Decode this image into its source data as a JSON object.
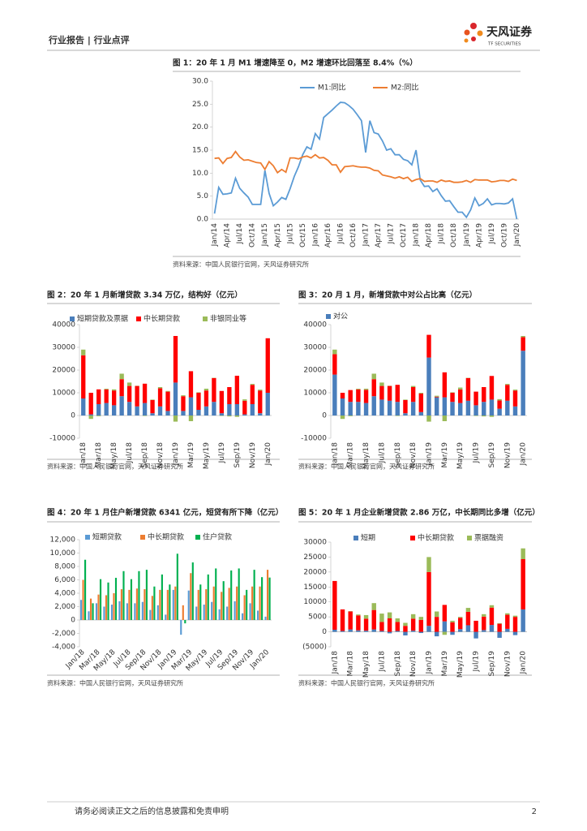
{
  "header": {
    "section": "行业报告 | 行业点评",
    "brand": "天风证券",
    "brand_en": "TF SECURITIES"
  },
  "chart_data": [
    {
      "type": "line",
      "title": "图 1：20 年 1 月 M1 增速降至 0，M2 增速环比回落至 8.4%（%）",
      "source": "资料来源：中国人民银行官网，天风证券研究所",
      "categories": [
        "Jan/14",
        null,
        null,
        "Apr/14",
        null,
        null,
        "Jul/14",
        null,
        null,
        "Oct/14",
        null,
        null,
        "Jan/15",
        null,
        null,
        "Apr/15",
        null,
        null,
        "Jul/15",
        null,
        null,
        "Oct/15",
        null,
        null,
        "Jan/16",
        null,
        null,
        "Apr/16",
        null,
        null,
        "Jul/16",
        null,
        null,
        "Oct/16",
        null,
        null,
        "Jan/17",
        null,
        null,
        "Apr/17",
        null,
        null,
        "Jul/17",
        null,
        null,
        "Oct/17",
        null,
        null,
        "Jan/18",
        null,
        null,
        "Apr/18",
        null,
        null,
        "Jul/18",
        null,
        null,
        "Oct/18",
        null,
        null,
        "Jan/19",
        null,
        null,
        "Apr/19",
        null,
        null,
        "Jul/19",
        null,
        null,
        "Oct/19",
        null,
        null,
        "Jan/20"
      ],
      "series": [
        {
          "name": "M1:同比",
          "color": "#5b9bd5",
          "values": [
            1.2,
            6.9,
            5.4,
            5.5,
            5.7,
            8.9,
            6.7,
            5.7,
            4.8,
            3.2,
            3.2,
            3.2,
            10.6,
            5.6,
            2.9,
            3.7,
            4.7,
            4.3,
            6.6,
            9.3,
            11.4,
            14.0,
            15.7,
            15.2,
            18.6,
            17.4,
            22.1,
            22.9,
            23.7,
            24.6,
            25.4,
            25.3,
            24.7,
            23.9,
            22.7,
            21.4,
            14.5,
            21.4,
            18.8,
            18.5,
            17.0,
            15.0,
            15.3,
            14.0,
            14.0,
            13.0,
            12.7,
            11.8,
            15.0,
            8.5,
            7.1,
            7.2,
            6.0,
            6.6,
            5.1,
            3.9,
            4.0,
            2.7,
            1.5,
            1.5,
            0.4,
            2.0,
            4.6,
            2.9,
            3.4,
            4.4,
            3.1,
            3.4,
            3.4,
            3.3,
            3.5,
            4.4,
            0.0
          ]
        },
        {
          "name": "M2:同比",
          "color": "#ed7d31",
          "values": [
            13.2,
            13.3,
            12.1,
            13.2,
            13.4,
            14.7,
            13.5,
            12.8,
            12.9,
            12.6,
            12.3,
            12.2,
            10.8,
            12.5,
            11.6,
            10.1,
            10.8,
            10.2,
            13.3,
            13.3,
            13.1,
            13.5,
            13.7,
            13.3,
            14.0,
            13.3,
            13.4,
            12.8,
            11.8,
            11.8,
            10.2,
            11.4,
            11.5,
            11.6,
            11.4,
            11.3,
            11.3,
            11.1,
            10.6,
            10.5,
            9.6,
            9.4,
            9.2,
            8.9,
            9.2,
            8.8,
            9.1,
            8.2,
            8.6,
            8.8,
            8.2,
            8.3,
            8.3,
            8.0,
            8.5,
            8.2,
            8.3,
            8.0,
            8.0,
            8.1,
            8.4,
            8.0,
            8.6,
            8.5,
            8.5,
            8.5,
            8.1,
            8.2,
            8.4,
            8.4,
            8.2,
            8.7,
            8.4
          ]
        }
      ],
      "ylim": [
        0,
        30
      ],
      "yticks": [
        {
          "value": 0,
          "label": "0.0"
        },
        {
          "value": 5,
          "label": "5.0"
        },
        {
          "value": 10,
          "label": "10.0"
        },
        {
          "value": 15,
          "label": "15.0"
        },
        {
          "value": 20,
          "label": "20.0"
        },
        {
          "value": 25,
          "label": "25.0"
        },
        {
          "value": 30,
          "label": "30.0"
        }
      ]
    },
    {
      "type": "stacked_bar",
      "title": "图 2：20 年 1 月新增贷款 3.34 万亿，结构好（亿元）",
      "source": "资料来源：中国人民银行官网，天风证券研究所",
      "categories": [
        "Jan/18",
        null,
        "Mar/18",
        null,
        "May/18",
        null,
        "Jul/18",
        null,
        "Sep/18",
        null,
        "Nov/18",
        null,
        "Jan/19",
        null,
        "Mar/19",
        null,
        "May/19",
        null,
        "Jul/19",
        null,
        "Sep/19",
        null,
        "Nov/19",
        null,
        "Jan/20"
      ],
      "series": [
        {
          "name": "短期贷款及票据",
          "color": "#4a7ebb",
          "values": [
            7500,
            500,
            5000,
            5500,
            4500,
            8500,
            6000,
            4000,
            5500,
            1000,
            4000,
            2000,
            14500,
            2000,
            8000,
            2500,
            4000,
            6000,
            1000,
            5000,
            5000,
            500,
            5000,
            1000,
            10000
          ]
        },
        {
          "name": "中长期贷款",
          "color": "#ff0000",
          "values": [
            19000,
            9500,
            6500,
            6000,
            6500,
            7500,
            7000,
            9000,
            8500,
            5800,
            8000,
            8500,
            20500,
            6500,
            11500,
            7500,
            7000,
            10500,
            9800,
            7500,
            12500,
            6000,
            8500,
            10000,
            24000
          ]
        },
        {
          "name": "非银同业等",
          "color": "#9bbb59",
          "values": [
            2500,
            -1500,
            -300,
            300,
            500,
            2400,
            1500,
            100,
            -200,
            200,
            500,
            300,
            -2700,
            400,
            -2500,
            200,
            800,
            100,
            -200,
            -400,
            -600,
            600,
            400,
            400,
            0
          ]
        }
      ],
      "ylim": [
        -10000,
        40000
      ],
      "yticks": [
        -10000,
        0,
        10000,
        20000,
        30000,
        40000
      ]
    },
    {
      "type": "stacked_bar",
      "title": "图 3：20 月 1 月，新增贷款中对公占比高（亿元）",
      "source": "资料来源：中国人民银行官网，天风证券研究所",
      "categories": [
        "Jan/18",
        null,
        "Mar/18",
        null,
        "May/18",
        null,
        "Jul/18",
        null,
        "Sep/18",
        null,
        "Nov/18",
        null,
        "Jan/19",
        null,
        "Mar/19",
        null,
        "May/19",
        null,
        "Jul/19",
        null,
        "Sep/19",
        null,
        "Nov/19",
        null,
        "Jan/20"
      ],
      "series": [
        {
          "name": "对公",
          "color": "#4a7ebb",
          "values": [
            18000,
            7500,
            6000,
            6000,
            5500,
            8500,
            7000,
            6500,
            6000,
            1000,
            6000,
            1500,
            25500,
            8000,
            8000,
            6000,
            5500,
            6500,
            4500,
            6000,
            7000,
            3000,
            6500,
            4000,
            28500
          ]
        },
        {
          "color": "#ff0000",
          "values": [
            9000,
            2500,
            5200,
            5500,
            5800,
            7500,
            6000,
            6500,
            7500,
            5800,
            6500,
            8200,
            10000,
            300,
            11000,
            4000,
            6000,
            10000,
            6000,
            6500,
            10400,
            3600,
            7000,
            7000,
            6000
          ]
        },
        {
          "color": "#9bbb59",
          "values": [
            2000,
            -1500,
            -300,
            300,
            500,
            2400,
            1500,
            100,
            -200,
            200,
            500,
            300,
            -2700,
            400,
            -2500,
            200,
            800,
            100,
            -200,
            -400,
            -600,
            600,
            400,
            400,
            500
          ]
        }
      ],
      "ylim": [
        -10000,
        40000
      ],
      "yticks": [
        -10000,
        0,
        10000,
        20000,
        30000,
        40000
      ]
    },
    {
      "type": "grouped_bar",
      "title": "图 4：20 年 1 月住户新增贷款 6341 亿元，短贷有所下降（亿元）",
      "source": "资料来源：中国人民银行官网，天风证券研究所",
      "categories": [
        "Jan/18",
        null,
        "Mar/18",
        null,
        "May/18",
        null,
        "Jul/18",
        null,
        "Sep/18",
        null,
        "Nov/18",
        null,
        "Jan/19",
        null,
        "Mar/19",
        null,
        "May/19",
        null,
        "Jul/19",
        null,
        "Sep/19",
        null,
        "Nov/19",
        null,
        "Jan/20"
      ],
      "series": [
        {
          "name": "短期贷款",
          "color": "#5b9bd5",
          "values": [
            3000,
            1300,
            2500,
            2000,
            2300,
            2800,
            2500,
            2500,
            2700,
            1500,
            2200,
            800,
            4500,
            -2200,
            4400,
            2000,
            2300,
            2700,
            1600,
            2000,
            2800,
            1000,
            2500,
            1400,
            500
          ]
        },
        {
          "name": "中长期贷款",
          "color": "#ed7d31",
          "values": [
            6000,
            3200,
            3800,
            3700,
            4000,
            4600,
            4500,
            4700,
            4600,
            3600,
            4500,
            4500,
            5000,
            2200,
            7000,
            4500,
            4600,
            5000,
            4200,
            4800,
            5000,
            3700,
            5000,
            5000,
            7500
          ]
        },
        {
          "name": "住户贷款",
          "color": "#00b050",
          "values": [
            9000,
            2500,
            6100,
            5600,
            6300,
            7300,
            6100,
            7300,
            7500,
            5000,
            6800,
            5300,
            9900,
            -500,
            8600,
            5300,
            6800,
            7700,
            5800,
            7400,
            7700,
            4500,
            7500,
            6400,
            6341
          ]
        }
      ],
      "ylim": [
        -4000,
        12000
      ],
      "yticks": [
        {
          "value": -4000,
          "label": "-4,000"
        },
        {
          "value": -2000,
          "label": "-2,000"
        },
        0,
        {
          "value": 2000,
          "label": "2,000"
        },
        {
          "value": 4000,
          "label": "4,000"
        },
        {
          "value": 6000,
          "label": "6,000"
        },
        {
          "value": 8000,
          "label": "8,000"
        },
        {
          "value": 10000,
          "label": "10,000"
        },
        {
          "value": 12000,
          "label": "12,000"
        }
      ]
    },
    {
      "type": "stacked_bar",
      "title": "图 5：20 年 1 月企业新增贷款 2.86 万亿，中长期同比多增（亿元）",
      "source": "资料来源：中国人民银行官网，天风证券研究所",
      "categories": [
        "Jan/18",
        null,
        "Mar/18",
        null,
        "May/18",
        null,
        "Jul/18",
        null,
        "Sep/18",
        null,
        "Nov/18",
        null,
        "Jan/19",
        null,
        "Mar/19",
        null,
        "May/19",
        null,
        "Jul/19",
        null,
        "Sep/19",
        null,
        "Nov/19",
        null,
        "Jan/20"
      ],
      "series": [
        {
          "name": "短期",
          "color": "#4a7ebb",
          "values": [
            700,
            300,
            800,
            500,
            400,
            800,
            300,
            -500,
            300,
            -1200,
            400,
            -400,
            2000,
            -1500,
            3500,
            -1000,
            900,
            2200,
            -2200,
            600,
            2300,
            -2000,
            1000,
            -1100,
            7500
          ]
        },
        {
          "name": "中长期贷款",
          "color": "#ff0000",
          "values": [
            16300,
            7200,
            6000,
            5000,
            4000,
            6500,
            3000,
            4500,
            3000,
            2000,
            4000,
            4000,
            18000,
            5000,
            5500,
            3200,
            3800,
            4500,
            3700,
            4500,
            5800,
            2700,
            4700,
            5000,
            16800
          ]
        },
        {
          "name": "票据融资",
          "color": "#9bbb59",
          "values": [
            0,
            0,
            100,
            300,
            1200,
            2300,
            2800,
            2000,
            1200,
            1000,
            1500,
            1000,
            5000,
            1800,
            -1000,
            500,
            300,
            1300,
            0,
            800,
            800,
            200,
            500,
            400,
            3600
          ]
        }
      ],
      "ylim": [
        -5000,
        30000
      ],
      "yticks": [
        {
          "value": -5000,
          "label": "(5000)"
        },
        0,
        5000,
        10000,
        15000,
        20000,
        25000,
        30000
      ]
    }
  ],
  "footer": {
    "disclaimer": "请务必阅读正文之后的信息披露和免责申明",
    "page": 2
  }
}
